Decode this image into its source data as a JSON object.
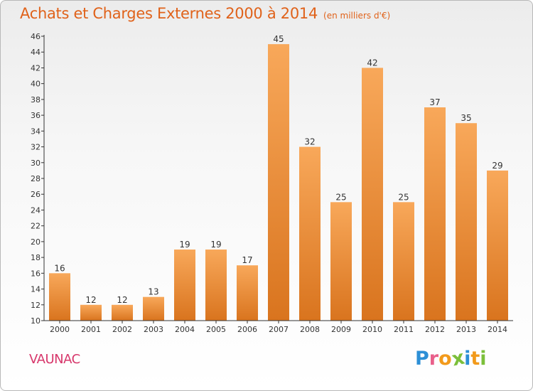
{
  "colors": {
    "title": "#e0621a",
    "commune": "#d7376b",
    "bar_top": "#f8a85a",
    "bar_bottom": "#d9741e",
    "axis": "#333333",
    "grid": "#cfcfcf"
  },
  "header": {
    "title": "Achats et Charges Externes 2000 à 2014",
    "subtitle": "(en milliers d'€)"
  },
  "commune": "VAUNAC",
  "brand": {
    "letters": [
      "P",
      "r",
      "o",
      "x",
      "i",
      "t",
      "i"
    ],
    "colors": [
      "#2c8fd6",
      "#e95f8a",
      "#f29a1b",
      "#7bbf3a",
      "#2c8fd6",
      "#f29a1b",
      "#7bbf3a"
    ]
  },
  "chart_data": {
    "type": "bar",
    "title": "Achats et Charges Externes 2000 à 2014",
    "subtitle": "(en milliers d'€)",
    "xlabel": "",
    "ylabel": "",
    "categories": [
      "2000",
      "2001",
      "2002",
      "2003",
      "2004",
      "2005",
      "2006",
      "2007",
      "2008",
      "2009",
      "2010",
      "2011",
      "2012",
      "2013",
      "2014"
    ],
    "values": [
      16,
      12,
      12,
      13,
      19,
      19,
      17,
      45,
      32,
      25,
      42,
      25,
      37,
      35,
      29
    ],
    "ylim": [
      10,
      46
    ],
    "ytick_step": 2,
    "grid": false,
    "legend": "none"
  }
}
